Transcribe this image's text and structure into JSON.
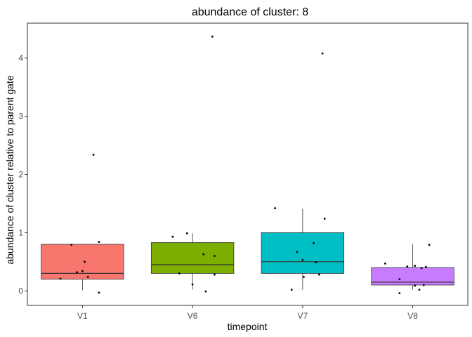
{
  "chart_data": {
    "type": "boxplot",
    "title": "abundance of cluster: 8",
    "xlabel": "timepoint",
    "ylabel": "abundance of cluster relative to parent gate",
    "categories": [
      "V1",
      "V6",
      "V7",
      "V8"
    ],
    "ylim": [
      -0.25,
      4.6
    ],
    "y_ticks": [
      0,
      1,
      2,
      3,
      4
    ],
    "grid": false,
    "legend": "none",
    "boxes": [
      {
        "category": "V1",
        "color": "#F8766D",
        "lower_whisker": 0.01,
        "q1": 0.2,
        "median": 0.3,
        "q3": 0.8,
        "upper_whisker": 0.8
      },
      {
        "category": "V6",
        "color": "#7CAE00",
        "lower_whisker": 0.02,
        "q1": 0.3,
        "median": 0.45,
        "q3": 0.83,
        "upper_whisker": 0.99
      },
      {
        "category": "V7",
        "color": "#00BFC4",
        "lower_whisker": 0.02,
        "q1": 0.3,
        "median": 0.5,
        "q3": 1.0,
        "upper_whisker": 1.41
      },
      {
        "category": "V8",
        "color": "#C77CFF",
        "lower_whisker": 0.02,
        "q1": 0.1,
        "median": 0.15,
        "q3": 0.4,
        "upper_whisker": 0.8
      }
    ],
    "points": [
      {
        "category": "V1",
        "jitter": -0.2,
        "y": 0.21
      },
      {
        "category": "V1",
        "jitter": -0.1,
        "y": 0.79
      },
      {
        "category": "V1",
        "jitter": -0.05,
        "y": 0.32
      },
      {
        "category": "V1",
        "jitter": 0.0,
        "y": 0.34
      },
      {
        "category": "V1",
        "jitter": 0.02,
        "y": 0.5
      },
      {
        "category": "V1",
        "jitter": 0.05,
        "y": 0.24
      },
      {
        "category": "V1",
        "jitter": 0.15,
        "y": 0.84
      },
      {
        "category": "V1",
        "jitter": 0.15,
        "y": -0.03
      },
      {
        "category": "V1",
        "jitter": 0.1,
        "y": 2.34
      },
      {
        "category": "V6",
        "jitter": -0.18,
        "y": 0.93
      },
      {
        "category": "V6",
        "jitter": -0.05,
        "y": 0.99
      },
      {
        "category": "V6",
        "jitter": -0.12,
        "y": 0.3
      },
      {
        "category": "V6",
        "jitter": 0.0,
        "y": 0.11
      },
      {
        "category": "V6",
        "jitter": 0.1,
        "y": 0.63
      },
      {
        "category": "V6",
        "jitter": 0.2,
        "y": 0.6
      },
      {
        "category": "V6",
        "jitter": 0.2,
        "y": 0.28
      },
      {
        "category": "V6",
        "jitter": 0.12,
        "y": -0.01
      },
      {
        "category": "V6",
        "jitter": 0.18,
        "y": 4.37
      },
      {
        "category": "V7",
        "jitter": -0.25,
        "y": 1.42
      },
      {
        "category": "V7",
        "jitter": -0.05,
        "y": 0.67
      },
      {
        "category": "V7",
        "jitter": 0.0,
        "y": 0.53
      },
      {
        "category": "V7",
        "jitter": 0.1,
        "y": 0.82
      },
      {
        "category": "V7",
        "jitter": 0.12,
        "y": 0.49
      },
      {
        "category": "V7",
        "jitter": 0.15,
        "y": 0.28
      },
      {
        "category": "V7",
        "jitter": 0.2,
        "y": 1.24
      },
      {
        "category": "V7",
        "jitter": -0.1,
        "y": 0.02
      },
      {
        "category": "V7",
        "jitter": 0.01,
        "y": 0.24
      },
      {
        "category": "V7",
        "jitter": 0.18,
        "y": 4.08
      },
      {
        "category": "V8",
        "jitter": -0.25,
        "y": 0.47
      },
      {
        "category": "V8",
        "jitter": -0.12,
        "y": 0.2
      },
      {
        "category": "V8",
        "jitter": -0.05,
        "y": 0.42
      },
      {
        "category": "V8",
        "jitter": 0.02,
        "y": 0.43
      },
      {
        "category": "V8",
        "jitter": 0.08,
        "y": 0.39
      },
      {
        "category": "V8",
        "jitter": 0.12,
        "y": 0.41
      },
      {
        "category": "V8",
        "jitter": 0.15,
        "y": 0.79
      },
      {
        "category": "V8",
        "jitter": 0.1,
        "y": 0.1
      },
      {
        "category": "V8",
        "jitter": 0.02,
        "y": 0.09
      },
      {
        "category": "V8",
        "jitter": -0.12,
        "y": -0.04
      },
      {
        "category": "V8",
        "jitter": 0.06,
        "y": 0.02
      }
    ]
  }
}
